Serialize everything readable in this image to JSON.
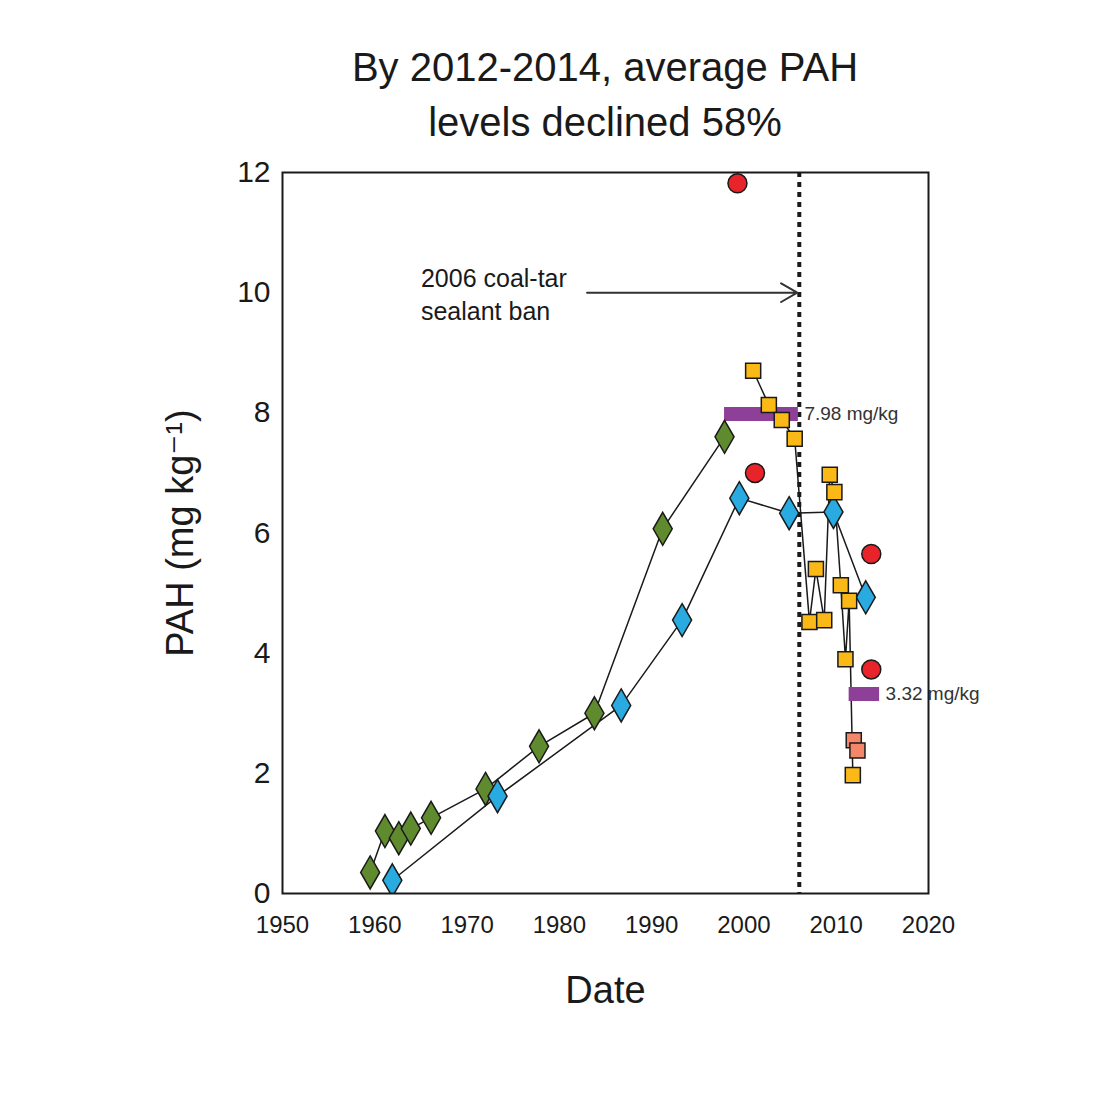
{
  "chart_data": {
    "type": "line",
    "title": "By 2012-2014, average PAH\nlevels declined 58%",
    "x_label": "Date",
    "y_label": "PAH (mg kg⁻¹)",
    "xlim": [
      1950,
      2020
    ],
    "xticks": [
      1950,
      1960,
      1970,
      1980,
      1990,
      2000,
      2010,
      2020
    ],
    "ylim": [
      0,
      12
    ],
    "yticks": [
      0,
      2,
      4,
      6,
      8,
      10,
      12
    ],
    "grid": false,
    "series": [
      {
        "type": "line",
        "color": "#5f8a2e",
        "marker": "diamond",
        "x": [
          1959.5,
          1961.1,
          1962.6,
          1963.9,
          1966.1,
          1972.0,
          1977.8,
          1983.8,
          1991.2,
          1997.9
        ],
        "values": [
          0.35,
          1.04,
          0.92,
          1.08,
          1.26,
          1.74,
          2.45,
          3.0,
          6.07,
          7.6
        ]
      },
      {
        "type": "line",
        "color": "#29abe2",
        "marker": "diamond",
        "x": [
          1961.9,
          1973.3,
          1986.7,
          1993.3,
          1999.5,
          2004.9,
          2009.7,
          2013.2
        ],
        "values": [
          0.22,
          1.62,
          3.13,
          4.55,
          6.58,
          6.33,
          6.35,
          4.93
        ]
      },
      {
        "type": "line",
        "color": "#fbb917",
        "marker": "square",
        "x": [
          2001.0,
          2002.7,
          2004.1,
          2005.5,
          2007.1,
          2007.8,
          2008.7,
          2009.3,
          2009.8,
          2010.5,
          2011.0,
          2011.4,
          2011.8
        ],
        "values": [
          8.7,
          8.13,
          7.88,
          7.57,
          4.52,
          5.4,
          4.55,
          6.97,
          6.68,
          5.13,
          3.9,
          4.87,
          1.97
        ]
      },
      {
        "type": "scatter",
        "color": "#f4866a",
        "marker": "square",
        "x": [
          2011.9,
          2012.3
        ],
        "values": [
          2.55,
          2.38
        ]
      },
      {
        "type": "scatter",
        "color": "#e8242a",
        "marker": "circle",
        "x": [
          1999.3,
          2001.2,
          2013.8,
          2013.8
        ],
        "values": [
          11.82,
          7.0,
          5.65,
          3.73
        ]
      }
    ],
    "averages": [
      {
        "x": [
          1997.9,
          2005.9
        ],
        "value": 7.98,
        "label": "7.98 mg/kg",
        "color": "#8e3f97"
      },
      {
        "x": [
          2011.4,
          2014.7
        ],
        "value": 3.32,
        "label": "3.32 mg/kg",
        "color": "#8e3f97"
      }
    ],
    "events": [
      {
        "x": 2006,
        "line_style": "dotted",
        "text": "2006 coal-tar\nsealant ban",
        "text_x": 1965,
        "text_y": 10,
        "arrow_from": 1983
      }
    ]
  }
}
